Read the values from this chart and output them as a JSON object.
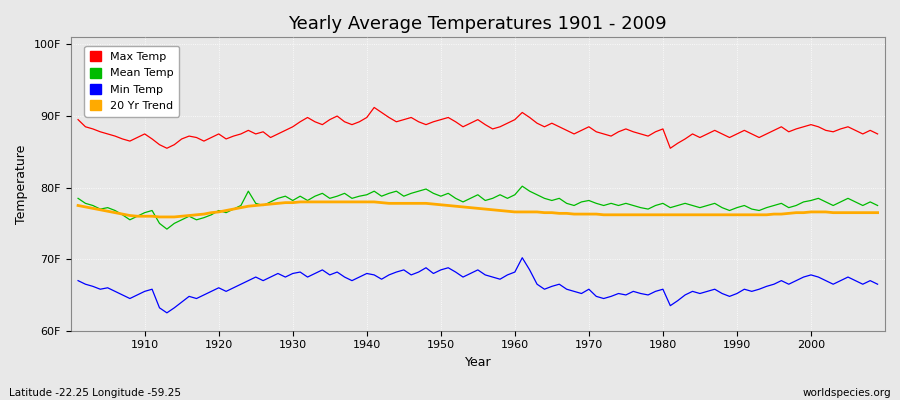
{
  "title": "Yearly Average Temperatures 1901 - 2009",
  "xlabel": "Year",
  "ylabel": "Temperature",
  "years_start": 1901,
  "years_end": 2009,
  "yticks": [
    60,
    70,
    80,
    90,
    100
  ],
  "ytick_labels": [
    "60F",
    "70F",
    "80F",
    "90F",
    "100F"
  ],
  "ylim": [
    60,
    101
  ],
  "xlim": [
    1900,
    2010
  ],
  "bg_color": "#e8e8e8",
  "grid_color": "#ffffff",
  "max_temp_color": "#ff0000",
  "mean_temp_color": "#00bb00",
  "min_temp_color": "#0000ff",
  "trend_color": "#ffaa00",
  "legend_labels": [
    "Max Temp",
    "Mean Temp",
    "Min Temp",
    "20 Yr Trend"
  ],
  "footer_left": "Latitude -22.25 Longitude -59.25",
  "footer_right": "worldspecies.org",
  "max_temps": [
    89.5,
    88.5,
    88.2,
    87.8,
    87.5,
    87.2,
    86.8,
    86.5,
    87.0,
    87.5,
    86.8,
    86.0,
    85.5,
    86.0,
    86.8,
    87.2,
    87.0,
    86.5,
    87.0,
    87.5,
    86.8,
    87.2,
    87.5,
    88.0,
    87.5,
    87.8,
    87.0,
    87.5,
    88.0,
    88.5,
    89.2,
    89.8,
    89.2,
    88.8,
    89.5,
    90.0,
    89.2,
    88.8,
    89.2,
    89.8,
    91.2,
    90.5,
    89.8,
    89.2,
    89.5,
    89.8,
    89.2,
    88.8,
    89.2,
    89.5,
    89.8,
    89.2,
    88.5,
    89.0,
    89.5,
    88.8,
    88.2,
    88.5,
    89.0,
    89.5,
    90.5,
    89.8,
    89.0,
    88.5,
    89.0,
    88.5,
    88.0,
    87.5,
    88.0,
    88.5,
    87.8,
    87.5,
    87.2,
    87.8,
    88.2,
    87.8,
    87.5,
    87.2,
    87.8,
    88.2,
    85.5,
    86.2,
    86.8,
    87.5,
    87.0,
    87.5,
    88.0,
    87.5,
    87.0,
    87.5,
    88.0,
    87.5,
    87.0,
    87.5,
    88.0,
    88.5,
    87.8,
    88.2,
    88.5,
    88.8,
    88.5,
    88.0,
    87.8,
    88.2,
    88.5,
    88.0,
    87.5,
    88.0,
    87.5
  ],
  "mean_temps": [
    78.5,
    77.8,
    77.5,
    77.0,
    77.2,
    76.8,
    76.2,
    75.5,
    76.0,
    76.5,
    76.8,
    75.0,
    74.2,
    75.0,
    75.5,
    76.0,
    75.5,
    75.8,
    76.2,
    76.8,
    76.5,
    77.0,
    77.5,
    79.5,
    77.8,
    77.5,
    78.0,
    78.5,
    78.8,
    78.2,
    78.8,
    78.2,
    78.8,
    79.2,
    78.5,
    78.8,
    79.2,
    78.5,
    78.8,
    79.0,
    79.5,
    78.8,
    79.2,
    79.5,
    78.8,
    79.2,
    79.5,
    79.8,
    79.2,
    78.8,
    79.2,
    78.5,
    78.0,
    78.5,
    79.0,
    78.2,
    78.5,
    79.0,
    78.5,
    79.0,
    80.2,
    79.5,
    79.0,
    78.5,
    78.2,
    78.5,
    77.8,
    77.5,
    78.0,
    78.2,
    77.8,
    77.5,
    77.8,
    77.5,
    77.8,
    77.5,
    77.2,
    77.0,
    77.5,
    77.8,
    77.2,
    77.5,
    77.8,
    77.5,
    77.2,
    77.5,
    77.8,
    77.2,
    76.8,
    77.2,
    77.5,
    77.0,
    76.8,
    77.2,
    77.5,
    77.8,
    77.2,
    77.5,
    78.0,
    78.2,
    78.5,
    78.0,
    77.5,
    78.0,
    78.5,
    78.0,
    77.5,
    78.0,
    77.5
  ],
  "min_temps": [
    67.0,
    66.5,
    66.2,
    65.8,
    66.0,
    65.5,
    65.0,
    64.5,
    65.0,
    65.5,
    65.8,
    63.2,
    62.5,
    63.2,
    64.0,
    64.8,
    64.5,
    65.0,
    65.5,
    66.0,
    65.5,
    66.0,
    66.5,
    67.0,
    67.5,
    67.0,
    67.5,
    68.0,
    67.5,
    68.0,
    68.2,
    67.5,
    68.0,
    68.5,
    67.8,
    68.2,
    67.5,
    67.0,
    67.5,
    68.0,
    67.8,
    67.2,
    67.8,
    68.2,
    68.5,
    67.8,
    68.2,
    68.8,
    68.0,
    68.5,
    68.8,
    68.2,
    67.5,
    68.0,
    68.5,
    67.8,
    67.5,
    67.2,
    67.8,
    68.2,
    70.2,
    68.5,
    66.5,
    65.8,
    66.2,
    66.5,
    65.8,
    65.5,
    65.2,
    65.8,
    64.8,
    64.5,
    64.8,
    65.2,
    65.0,
    65.5,
    65.2,
    65.0,
    65.5,
    65.8,
    63.5,
    64.2,
    65.0,
    65.5,
    65.2,
    65.5,
    65.8,
    65.2,
    64.8,
    65.2,
    65.8,
    65.5,
    65.8,
    66.2,
    66.5,
    67.0,
    66.5,
    67.0,
    67.5,
    67.8,
    67.5,
    67.0,
    66.5,
    67.0,
    67.5,
    67.0,
    66.5,
    67.0,
    66.5
  ],
  "trend_temps": [
    77.5,
    77.3,
    77.1,
    76.9,
    76.7,
    76.5,
    76.3,
    76.1,
    76.0,
    76.0,
    76.0,
    75.9,
    75.9,
    75.9,
    76.0,
    76.1,
    76.2,
    76.3,
    76.5,
    76.6,
    76.8,
    77.0,
    77.2,
    77.4,
    77.5,
    77.6,
    77.7,
    77.8,
    77.9,
    77.9,
    78.0,
    78.0,
    78.0,
    78.0,
    78.0,
    78.0,
    78.0,
    78.0,
    78.0,
    78.0,
    78.0,
    77.9,
    77.8,
    77.8,
    77.8,
    77.8,
    77.8,
    77.8,
    77.7,
    77.6,
    77.5,
    77.4,
    77.3,
    77.2,
    77.1,
    77.0,
    76.9,
    76.8,
    76.7,
    76.6,
    76.6,
    76.6,
    76.6,
    76.5,
    76.5,
    76.4,
    76.4,
    76.3,
    76.3,
    76.3,
    76.3,
    76.2,
    76.2,
    76.2,
    76.2,
    76.2,
    76.2,
    76.2,
    76.2,
    76.2,
    76.2,
    76.2,
    76.2,
    76.2,
    76.2,
    76.2,
    76.2,
    76.2,
    76.2,
    76.2,
    76.2,
    76.2,
    76.2,
    76.2,
    76.3,
    76.3,
    76.4,
    76.5,
    76.5,
    76.6,
    76.6,
    76.6,
    76.5,
    76.5,
    76.5,
    76.5,
    76.5,
    76.5,
    76.5
  ]
}
